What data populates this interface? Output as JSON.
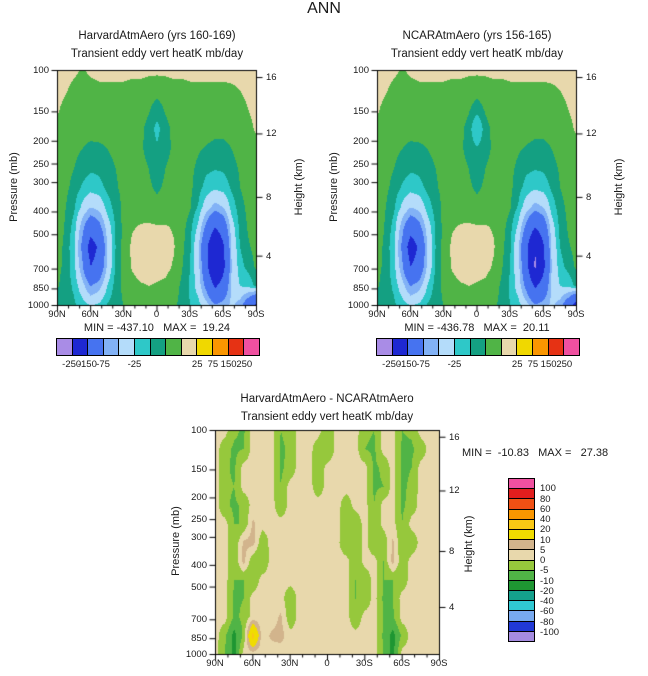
{
  "title": "ANN",
  "chart_data": [
    {
      "type": "heatmap",
      "title": "HarvardAtmAero (yrs 160-169)",
      "subtitle": "Transient eddy vert heatK mb/day",
      "stats": "MIN = -437.10   MAX =  19.24",
      "x_ticks": [
        "90N",
        "60N",
        "30N",
        "0",
        "30S",
        "60S",
        "90S"
      ],
      "y_left_label": "Pressure (mb)",
      "y_left_scale": "log",
      "y_left_ticks": [
        100,
        150,
        200,
        250,
        300,
        400,
        500,
        700,
        850,
        1000
      ],
      "y_right_label": "Height (km)",
      "y_right_ticks": [
        16,
        12,
        8,
        4
      ],
      "levels": [
        -250,
        -150,
        -75,
        -50,
        -25,
        -10,
        0,
        10,
        25,
        75,
        150,
        250
      ],
      "colors": [
        "#a98ce6",
        "#1e28d2",
        "#4673f0",
        "#82b2f6",
        "#b4dcfa",
        "#2ec8c8",
        "#14a082",
        "#50b446",
        "#e8d8ac",
        "#f0d800",
        "#fa9600",
        "#e63214",
        "#f050a0"
      ],
      "colorbar_labels": [
        "-250",
        "-150",
        "-75",
        "-25",
        "25",
        "75",
        "150",
        "250"
      ],
      "colorbar_label_boundaries": [
        0,
        1,
        2,
        4,
        8,
        9,
        10,
        11
      ],
      "grid": [
        [
          14,
          14,
          12,
          9,
          12,
          14,
          14,
          14,
          14,
          13,
          13,
          12,
          12,
          12,
          13,
          13,
          14,
          14,
          14,
          14,
          14,
          14,
          14,
          14,
          14
        ],
        [
          13,
          11,
          7,
          5,
          6,
          7,
          7,
          7,
          7,
          6,
          6,
          5,
          4,
          5,
          6,
          6,
          7,
          7,
          7,
          7,
          7,
          8,
          10,
          12,
          13
        ],
        [
          11,
          7,
          5,
          4,
          4,
          5,
          5,
          5,
          5,
          5,
          4,
          1,
          -5,
          1,
          4,
          5,
          5,
          5,
          5,
          5,
          5,
          5,
          7,
          10,
          12
        ],
        [
          8,
          5,
          4,
          3,
          3,
          4,
          4,
          4,
          4,
          4,
          2,
          -3,
          -14,
          -3,
          2,
          4,
          4,
          4,
          4,
          3,
          3,
          4,
          5,
          8,
          11
        ],
        [
          6,
          4,
          2,
          0,
          -2,
          -2,
          0,
          2,
          3,
          3,
          1,
          -2,
          -8,
          -2,
          1,
          3,
          3,
          1,
          -1,
          -3,
          -3,
          0,
          3,
          5,
          8
        ],
        [
          5,
          3,
          0,
          -4,
          -8,
          -7,
          -3,
          0,
          2,
          3,
          2,
          0,
          -3,
          0,
          2,
          3,
          2,
          -2,
          -7,
          -9,
          -8,
          -3,
          1,
          4,
          6
        ],
        [
          5,
          2,
          -3,
          -12,
          -18,
          -15,
          -7,
          -1,
          2,
          4,
          3,
          1,
          -1,
          1,
          3,
          4,
          2,
          -5,
          -16,
          -22,
          -18,
          -8,
          0,
          3,
          5
        ],
        [
          4,
          0,
          -8,
          -30,
          -50,
          -42,
          -18,
          -4,
          2,
          5,
          5,
          3,
          2,
          3,
          5,
          5,
          1,
          -12,
          -40,
          -60,
          -50,
          -18,
          -3,
          2,
          5
        ],
        [
          4,
          -1,
          -15,
          -65,
          -115,
          -90,
          -38,
          -8,
          3,
          9,
          11,
          12,
          11,
          11,
          9,
          4,
          -5,
          -30,
          -90,
          -150,
          -110,
          -35,
          -6,
          1,
          4
        ],
        [
          3,
          -2,
          -20,
          -85,
          -185,
          -140,
          -50,
          -10,
          4,
          12,
          15,
          16,
          15,
          14,
          11,
          3,
          -8,
          -45,
          -140,
          -240,
          -160,
          -45,
          -10,
          -1,
          3
        ],
        [
          3,
          -3,
          -18,
          -70,
          -150,
          -120,
          -45,
          -8,
          4,
          11,
          14,
          15,
          14,
          13,
          9,
          1,
          -10,
          -40,
          -130,
          -255,
          -170,
          -50,
          -15,
          -5,
          2
        ],
        [
          1,
          -5,
          -12,
          -40,
          -75,
          -60,
          -25,
          -4,
          2,
          7,
          9,
          10,
          9,
          8,
          5,
          -2,
          -12,
          -35,
          -90,
          -160,
          -120,
          -45,
          -25,
          -20,
          -5
        ],
        [
          -4,
          -8,
          -8,
          -15,
          -25,
          -20,
          -8,
          -2,
          0,
          3,
          5,
          6,
          5,
          4,
          2,
          -3,
          -10,
          -18,
          -40,
          -70,
          -60,
          -45,
          -60,
          -110,
          -170
        ]
      ]
    },
    {
      "type": "heatmap",
      "title": "NCARAtmAero (yrs 156-165)",
      "subtitle": "Transient eddy vert heatK mb/day",
      "stats": "MIN = -436.78   MAX =  20.11",
      "x_ticks": [
        "90N",
        "60N",
        "30N",
        "0",
        "30S",
        "60S",
        "90S"
      ],
      "y_left_label": "Pressure (mb)",
      "y_left_scale": "log",
      "y_left_ticks": [
        100,
        150,
        200,
        250,
        300,
        400,
        500,
        700,
        850,
        1000
      ],
      "y_right_label": "Height (km)",
      "y_right_ticks": [
        16,
        12,
        8,
        4
      ],
      "levels": [
        -250,
        -150,
        -75,
        -50,
        -25,
        -10,
        0,
        10,
        25,
        75,
        150,
        250
      ],
      "colors": [
        "#a98ce6",
        "#1e28d2",
        "#4673f0",
        "#82b2f6",
        "#b4dcfa",
        "#2ec8c8",
        "#14a082",
        "#50b446",
        "#e8d8ac",
        "#f0d800",
        "#fa9600",
        "#e63214",
        "#f050a0"
      ],
      "colorbar_labels": [
        "-250",
        "-150",
        "-75",
        "-25",
        "25",
        "75",
        "150",
        "250"
      ],
      "colorbar_label_boundaries": [
        0,
        1,
        2,
        4,
        8,
        9,
        10,
        11
      ],
      "grid": [
        [
          14,
          14,
          12,
          9,
          12,
          14,
          14,
          14,
          14,
          13,
          13,
          12,
          12,
          12,
          13,
          13,
          14,
          14,
          14,
          14,
          14,
          14,
          14,
          14,
          14
        ],
        [
          13,
          11,
          7,
          5,
          6,
          7,
          7,
          7,
          7,
          6,
          6,
          5,
          4,
          5,
          6,
          6,
          7,
          7,
          7,
          7,
          7,
          8,
          10,
          12,
          13
        ],
        [
          11,
          7,
          5,
          4,
          4,
          5,
          5,
          5,
          5,
          5,
          4,
          1,
          -5,
          1,
          4,
          5,
          5,
          5,
          5,
          5,
          5,
          5,
          7,
          10,
          12
        ],
        [
          8,
          5,
          4,
          3,
          3,
          4,
          4,
          4,
          4,
          4,
          2,
          -3,
          -26,
          -3,
          2,
          4,
          4,
          4,
          4,
          3,
          3,
          4,
          5,
          8,
          11
        ],
        [
          6,
          4,
          2,
          0,
          -2,
          -2,
          0,
          2,
          3,
          3,
          1,
          -2,
          -8,
          -2,
          1,
          3,
          3,
          1,
          -1,
          -3,
          -3,
          0,
          3,
          5,
          8
        ],
        [
          5,
          3,
          0,
          -4,
          -8,
          -7,
          -3,
          0,
          2,
          3,
          2,
          0,
          -3,
          0,
          2,
          3,
          2,
          -2,
          -7,
          -9,
          -8,
          -3,
          1,
          4,
          6
        ],
        [
          5,
          2,
          -3,
          -12,
          -18,
          -15,
          -7,
          -1,
          2,
          4,
          3,
          1,
          -1,
          1,
          3,
          4,
          2,
          -5,
          -16,
          -22,
          -18,
          -8,
          0,
          3,
          5
        ],
        [
          4,
          0,
          -8,
          -30,
          -50,
          -42,
          -18,
          -4,
          2,
          5,
          5,
          3,
          2,
          3,
          5,
          5,
          1,
          -12,
          -40,
          -60,
          -50,
          -18,
          -3,
          2,
          5
        ],
        [
          4,
          -1,
          -15,
          -65,
          -115,
          -90,
          -38,
          -8,
          3,
          9,
          11,
          12,
          11,
          11,
          9,
          4,
          -5,
          -30,
          -90,
          -150,
          -110,
          -35,
          -6,
          1,
          4
        ],
        [
          3,
          -2,
          -20,
          -85,
          -195,
          -140,
          -50,
          -10,
          4,
          12,
          15,
          16,
          15,
          14,
          11,
          3,
          -8,
          -45,
          -140,
          -248,
          -160,
          -45,
          -10,
          -1,
          3
        ],
        [
          3,
          -3,
          -18,
          -70,
          -150,
          -120,
          -45,
          -8,
          4,
          11,
          14,
          15,
          14,
          13,
          9,
          1,
          -10,
          -40,
          -130,
          -262,
          -170,
          -50,
          -15,
          -5,
          2
        ],
        [
          1,
          -5,
          -12,
          -40,
          -75,
          -60,
          -25,
          -4,
          2,
          7,
          9,
          10,
          9,
          8,
          5,
          -2,
          -12,
          -35,
          -90,
          -160,
          -120,
          -45,
          -25,
          -20,
          -5
        ],
        [
          -4,
          -8,
          -8,
          -15,
          -25,
          -20,
          -8,
          -2,
          0,
          3,
          5,
          6,
          5,
          4,
          2,
          -3,
          -10,
          -18,
          -40,
          -70,
          -60,
          -45,
          -60,
          -110,
          -185
        ]
      ]
    },
    {
      "type": "heatmap",
      "title": "HarvardAtmAero - NCARAtmAero",
      "subtitle": "Transient eddy vert heatK mb/day",
      "stats": "MIN =  -10.83   MAX =   27.38",
      "x_ticks": [
        "90N",
        "60N",
        "30N",
        "0",
        "30S",
        "60S",
        "90S"
      ],
      "y_left_label": "Pressure (mb)",
      "y_left_scale": "log",
      "y_left_ticks": [
        100,
        150,
        200,
        250,
        300,
        400,
        500,
        700,
        850,
        1000
      ],
      "y_right_label": "Height (km)",
      "y_right_ticks": [
        16,
        12,
        8,
        4
      ],
      "levels": [
        -100,
        -80,
        -60,
        -40,
        -20,
        -10,
        -5,
        0,
        5,
        10,
        20,
        40,
        60,
        80,
        100
      ],
      "colors": [
        "#a58ce0",
        "#2139d6",
        "#78aaf0",
        "#30c8d2",
        "#14a08c",
        "#1e9632",
        "#50b446",
        "#96c83c",
        "#e8d8ac",
        "#d2b48c",
        "#f0dc00",
        "#fac814",
        "#fa9600",
        "#f05014",
        "#e11e1e",
        "#f050a0"
      ],
      "colorbar_labels": [
        "100",
        "80",
        "60",
        "40",
        "20",
        "10",
        "5",
        "0",
        "-5",
        "-10",
        "-20",
        "-40",
        "-60",
        "-80",
        "-100"
      ],
      "colorbar_label_boundaries": [],
      "grid": [
        [
          2,
          2,
          -4,
          -6,
          2,
          2,
          2,
          -5,
          -3,
          2,
          2,
          2,
          -4,
          2,
          2,
          2,
          -4,
          -5,
          2,
          2,
          -5,
          -4,
          2,
          2,
          2
        ],
        [
          2,
          -3,
          -6,
          -5,
          2,
          2,
          2,
          -6,
          -4,
          2,
          2,
          -3,
          -5,
          2,
          2,
          2,
          -5,
          -6,
          2,
          2,
          -6,
          -6,
          -3,
          2,
          2
        ],
        [
          2,
          -4,
          -6,
          2,
          2,
          2,
          2,
          -6,
          -3,
          2,
          2,
          -4,
          2,
          2,
          2,
          2,
          2,
          -6,
          -4,
          2,
          -6,
          -5,
          2,
          2,
          2
        ],
        [
          2,
          -4,
          -5,
          2,
          2,
          2,
          2,
          -5,
          2,
          2,
          2,
          -3,
          2,
          2,
          2,
          2,
          2,
          -6,
          -5,
          2,
          -6,
          -4,
          2,
          2,
          2
        ],
        [
          2,
          -4,
          -6,
          -4,
          2,
          2,
          2,
          -4,
          2,
          2,
          2,
          2,
          2,
          2,
          -3,
          2,
          2,
          -5,
          2,
          2,
          -6,
          -3,
          2,
          2,
          2
        ],
        [
          2,
          2,
          -5,
          -5,
          6,
          2,
          2,
          2,
          2,
          2,
          2,
          2,
          2,
          2,
          -4,
          -4,
          2,
          -5,
          2,
          2,
          -5,
          2,
          2,
          2,
          2
        ],
        [
          2,
          2,
          -5,
          6,
          7,
          -4,
          2,
          2,
          2,
          2,
          2,
          2,
          2,
          2,
          -5,
          -4,
          2,
          -5,
          -4,
          6,
          -5,
          -4,
          2,
          2,
          2
        ],
        [
          2,
          2,
          -5,
          7,
          -4,
          -5,
          2,
          2,
          2,
          2,
          2,
          2,
          2,
          2,
          2,
          -4,
          2,
          2,
          -5,
          7,
          -4,
          2,
          2,
          2,
          2
        ],
        [
          2,
          2,
          -5,
          -5,
          -4,
          2,
          2,
          2,
          2,
          2,
          2,
          2,
          2,
          2,
          2,
          -5,
          -4,
          2,
          -5,
          -5,
          -3,
          2,
          2,
          2,
          2
        ],
        [
          2,
          2,
          -6,
          -5,
          2,
          2,
          2,
          2,
          -4,
          2,
          2,
          2,
          2,
          2,
          2,
          -5,
          -4,
          2,
          -6,
          -5,
          2,
          2,
          2,
          2,
          2
        ],
        [
          2,
          2,
          -6,
          -4,
          2,
          2,
          2,
          6,
          -4,
          2,
          2,
          2,
          2,
          2,
          2,
          -4,
          2,
          2,
          -5,
          -6,
          2,
          2,
          2,
          2,
          2
        ],
        [
          2,
          -4,
          -12,
          -4,
          24,
          2,
          6,
          7,
          2,
          2,
          2,
          2,
          2,
          2,
          2,
          2,
          2,
          2,
          -6,
          -12,
          -4,
          2,
          2,
          2,
          2
        ],
        [
          2,
          -5,
          -12,
          2,
          2,
          2,
          2,
          2,
          2,
          2,
          2,
          2,
          2,
          2,
          2,
          2,
          2,
          2,
          -5,
          -12,
          2,
          2,
          2,
          2,
          2
        ]
      ]
    }
  ]
}
